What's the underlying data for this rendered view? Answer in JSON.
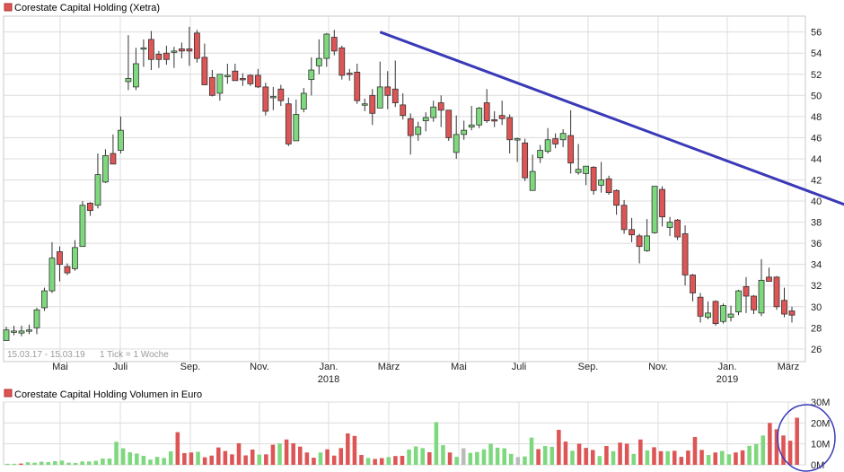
{
  "chart_data": [
    {
      "type": "candlestick",
      "title": "Corestate Capital Holding (Xetra)",
      "period_label": "15.03.17 - 15.03.19",
      "tick_label": "1 Tick = 1 Woche",
      "ylim": [
        24.8,
        57.5
      ],
      "y_ticks": [
        26,
        28,
        30,
        32,
        34,
        36,
        38,
        40,
        42,
        44,
        46,
        48,
        50,
        52,
        54,
        56
      ],
      "x_ticks": [
        {
          "label": "Mai",
          "year": ""
        },
        {
          "label": "Juli",
          "year": ""
        },
        {
          "label": "Sep.",
          "year": ""
        },
        {
          "label": "Nov.",
          "year": ""
        },
        {
          "label": "Jan.",
          "year": "2018"
        },
        {
          "label": "März",
          "year": ""
        },
        {
          "label": "Mai",
          "year": ""
        },
        {
          "label": "Juli",
          "year": ""
        },
        {
          "label": "Sep.",
          "year": ""
        },
        {
          "label": "Nov.",
          "year": ""
        },
        {
          "label": "Jan.",
          "year": "2019"
        },
        {
          "label": "März",
          "year": ""
        }
      ],
      "trendline": {
        "from": [
          49,
          56.0
        ],
        "to": [
          115,
          38.3
        ],
        "color": "#3a3ab8"
      },
      "candles": [
        [
          26.8,
          28.1,
          27.8,
          26.8
        ],
        [
          27.6,
          28.2,
          27.7,
          27.3
        ],
        [
          27.5,
          28.2,
          27.7,
          27.2
        ],
        [
          27.8,
          28.3,
          27.8,
          27.4
        ],
        [
          28.0,
          29.9,
          29.7,
          27.4
        ],
        [
          29.9,
          31.8,
          31.5,
          29.6
        ],
        [
          31.5,
          36.1,
          34.6,
          31.3
        ],
        [
          35.2,
          35.7,
          34.0,
          32.4
        ],
        [
          33.8,
          34.1,
          33.2,
          33.0
        ],
        [
          33.6,
          36.3,
          35.6,
          33.4
        ],
        [
          35.7,
          40.0,
          39.6,
          35.7
        ],
        [
          39.8,
          39.9,
          39.1,
          38.6
        ],
        [
          39.6,
          44.5,
          42.5,
          39.3
        ],
        [
          41.8,
          44.9,
          44.3,
          41.7
        ],
        [
          44.5,
          46.3,
          43.5,
          43.8
        ],
        [
          44.8,
          48.0,
          46.7,
          44.5
        ],
        [
          51.3,
          55.7,
          51.6,
          50.5
        ],
        [
          50.8,
          54.5,
          53.0,
          50.5
        ],
        [
          54.5,
          55.3,
          54.5,
          52.7
        ],
        [
          55.3,
          56.1,
          53.4,
          52.4
        ],
        [
          53.9,
          54.2,
          53.4,
          52.6
        ],
        [
          54.0,
          54.7,
          53.4,
          52.9
        ],
        [
          54.2,
          54.6,
          54.2,
          52.6
        ],
        [
          54.4,
          55.0,
          54.2,
          53.5
        ],
        [
          54.4,
          56.5,
          54.2,
          52.8
        ],
        [
          55.9,
          56.2,
          53.5,
          53.1
        ],
        [
          53.6,
          54.9,
          51.0,
          51.3
        ],
        [
          51.7,
          52.4,
          50.0,
          49.9
        ],
        [
          50.2,
          52.0,
          52.0,
          49.5
        ],
        [
          51.9,
          53.0,
          51.9,
          51.1
        ],
        [
          52.3,
          53.0,
          51.4,
          51.4
        ],
        [
          51.6,
          52.1,
          51.5,
          50.9
        ],
        [
          51.9,
          52.0,
          51.1,
          50.9
        ],
        [
          51.9,
          52.5,
          50.8,
          50.7
        ],
        [
          50.8,
          51.2,
          48.5,
          48.1
        ],
        [
          49.8,
          50.8,
          49.9,
          48.6
        ],
        [
          50.6,
          51.0,
          49.5,
          49.0
        ],
        [
          49.2,
          49.8,
          45.4,
          45.2
        ],
        [
          45.7,
          49.6,
          48.2,
          45.8
        ],
        [
          48.7,
          50.7,
          50.2,
          48.4
        ],
        [
          51.5,
          53.6,
          52.4,
          50.0
        ],
        [
          52.8,
          55.3,
          53.5,
          52.0
        ],
        [
          53.5,
          55.9,
          55.8,
          52.7
        ],
        [
          55.5,
          56.2,
          54.2,
          53.8
        ],
        [
          54.5,
          54.7,
          51.9,
          51.5
        ],
        [
          52.1,
          52.5,
          52.0,
          51.4
        ],
        [
          52.2,
          53.0,
          49.5,
          49.2
        ],
        [
          49.2,
          49.7,
          49.2,
          48.5
        ],
        [
          50.0,
          50.6,
          48.3,
          47.2
        ],
        [
          48.8,
          53.2,
          50.8,
          49.5
        ],
        [
          50.8,
          52.3,
          50.0,
          48.7
        ],
        [
          50.6,
          53.3,
          49.3,
          48.9
        ],
        [
          49.1,
          50.2,
          48.1,
          47.7
        ],
        [
          47.8,
          48.3,
          46.2,
          44.4
        ],
        [
          46.3,
          47.5,
          47.0,
          45.7
        ],
        [
          47.6,
          48.4,
          47.9,
          46.6
        ],
        [
          47.9,
          49.5,
          48.9,
          47.5
        ],
        [
          49.3,
          50.0,
          48.6,
          47.0
        ],
        [
          48.6,
          48.6,
          46.0,
          45.7
        ],
        [
          44.6,
          48.1,
          46.3,
          44.0
        ],
        [
          46.3,
          47.6,
          46.7,
          45.8
        ],
        [
          47.0,
          49.0,
          47.2,
          46.7
        ],
        [
          47.2,
          48.9,
          48.8,
          46.9
        ],
        [
          49.3,
          50.6,
          47.6,
          47.4
        ],
        [
          47.7,
          48.5,
          47.6,
          47.0
        ],
        [
          48.1,
          49.5,
          47.8,
          47.2
        ],
        [
          47.9,
          48.2,
          45.8,
          44.5
        ],
        [
          45.9,
          46.0,
          45.9,
          43.7
        ],
        [
          45.5,
          45.9,
          42.2,
          41.9
        ],
        [
          41.0,
          44.4,
          42.8,
          41.3
        ],
        [
          44.1,
          45.3,
          44.8,
          43.6
        ],
        [
          44.7,
          46.9,
          45.8,
          44.5
        ],
        [
          45.9,
          46.4,
          45.4,
          45.0
        ],
        [
          45.8,
          46.8,
          46.4,
          45.1
        ],
        [
          46.2,
          48.6,
          43.6,
          42.6
        ],
        [
          42.7,
          45.4,
          43.0,
          42.5
        ],
        [
          42.6,
          43.2,
          43.3,
          41.5
        ],
        [
          43.2,
          43.3,
          41.0,
          40.6
        ],
        [
          41.5,
          43.7,
          42.0,
          40.8
        ],
        [
          42.1,
          42.4,
          40.8,
          40.6
        ],
        [
          41.0,
          41.1,
          39.6,
          38.7
        ],
        [
          39.6,
          40.1,
          37.3,
          36.9
        ],
        [
          37.3,
          38.4,
          36.8,
          36.1
        ],
        [
          36.7,
          36.9,
          35.7,
          34.1
        ],
        [
          35.3,
          38.3,
          36.7,
          35.2
        ],
        [
          37.0,
          41.4,
          41.4,
          36.9
        ],
        [
          41.1,
          41.4,
          38.5,
          37.6
        ],
        [
          37.5,
          38.5,
          38.0,
          36.7
        ],
        [
          38.2,
          38.3,
          36.6,
          36.3
        ],
        [
          36.9,
          37.7,
          33.0,
          32.0
        ],
        [
          33.0,
          33.1,
          31.3,
          30.5
        ],
        [
          30.9,
          31.3,
          29.1,
          28.5
        ],
        [
          29.0,
          30.5,
          29.4,
          28.8
        ],
        [
          30.5,
          30.6,
          28.4,
          28.2
        ],
        [
          28.6,
          30.3,
          30.1,
          28.4
        ],
        [
          29.0,
          30.1,
          29.3,
          28.6
        ],
        [
          29.5,
          31.6,
          31.5,
          29.2
        ],
        [
          31.9,
          32.8,
          31.0,
          29.4
        ],
        [
          31.0,
          31.1,
          29.7,
          29.3
        ],
        [
          29.4,
          34.5,
          32.5,
          29.1
        ],
        [
          32.8,
          33.7,
          32.4,
          32.4
        ],
        [
          32.8,
          32.9,
          30.0,
          29.7
        ],
        [
          30.6,
          31.8,
          29.3,
          29.0
        ],
        [
          29.6,
          30.0,
          29.2,
          28.5
        ]
      ]
    },
    {
      "type": "bar",
      "title": "Corestate Capital Holding Volumen in Euro",
      "ylim": [
        0,
        30
      ],
      "y_ticks": [
        {
          "value": 0,
          "label": "0M"
        },
        {
          "value": 10,
          "label": "10M"
        },
        {
          "value": 20,
          "label": "20M"
        },
        {
          "value": 30,
          "label": "30M"
        }
      ],
      "values": [
        0.5,
        0.5,
        0.6,
        1.2,
        1.0,
        1.5,
        1.3,
        1.7,
        2.0,
        1.0,
        0.9,
        1.6,
        1.6,
        1.9,
        3.0,
        3.0,
        11.0,
        7.9,
        6.0,
        5.4,
        4.3,
        2.5,
        3.8,
        3.3,
        6.4,
        15.6,
        5.6,
        5.9,
        6.2,
        3.6,
        4.4,
        8.3,
        6.6,
        5.0,
        10.3,
        4.5,
        7.3,
        4.9,
        5.0,
        9.6,
        10.2,
        12.1,
        10.3,
        8.7,
        5.9,
        3.4,
        5.9,
        7.4,
        4.4,
        8.0,
        15.0,
        13.8,
        4.7,
        3.3,
        2.8,
        3.2,
        3.7,
        4.2,
        4.3,
        7.3,
        8.8,
        8.0,
        6.0,
        20.4,
        9.4,
        5.9,
        3.8,
        7.9,
        5.7,
        6.1,
        7.4,
        10.1,
        8.2,
        7.9,
        5.2,
        3.7,
        4.0,
        13.0,
        7.5,
        9.0,
        8.6,
        16.7,
        11.1,
        6.7,
        10.1,
        8.1,
        7.1,
        4.2,
        9.0,
        6.5,
        10.6,
        10.1,
        5.2,
        12.1,
        6.9,
        8.4,
        6.5,
        6.5,
        6.7,
        3.8,
        6.8,
        13.3,
        7.1,
        4.7,
        5.9,
        6.6,
        5.0,
        5.9,
        6.9,
        9.1,
        9.9,
        14.0,
        20.0,
        17.0,
        14.0,
        11.5,
        22.5
      ],
      "colors": [
        "g",
        "g",
        "r",
        "g",
        "g",
        "g",
        "g",
        "g",
        "g",
        "g",
        "g",
        "g",
        "g",
        "g",
        "g",
        "g",
        "g",
        "g",
        "g",
        "g",
        "g",
        "g",
        "g",
        "g",
        "g",
        "r",
        "r",
        "r",
        "g",
        "r",
        "r",
        "r",
        "r",
        "r",
        "r",
        "r",
        "r",
        "g",
        "r",
        "r",
        "g",
        "r",
        "r",
        "r",
        "r",
        "r",
        "g",
        "r",
        "r",
        "r",
        "r",
        "r",
        "r",
        "g",
        "r",
        "r",
        "g",
        "r",
        "r",
        "g",
        "g",
        "g",
        "r",
        "g",
        "g",
        "r",
        "g",
        "y",
        "g",
        "g",
        "g",
        "g",
        "g",
        "g",
        "g",
        "y",
        "g",
        "g",
        "r",
        "g",
        "g",
        "r",
        "r",
        "g",
        "r",
        "r",
        "r",
        "g",
        "r",
        "g",
        "r",
        "r",
        "g",
        "r",
        "g",
        "r",
        "r",
        "g",
        "r",
        "r",
        "r",
        "r",
        "r",
        "g",
        "r",
        "g",
        "g",
        "r",
        "r",
        "g",
        "g",
        "g",
        "r",
        "r",
        "r",
        "r",
        "r"
      ]
    }
  ],
  "colors": {
    "up": "#7ed87e",
    "down": "#dd5555",
    "neutral": "#bbbbbb",
    "grid": "#dcdcdc",
    "trend": "#3a3ab8",
    "circle": "#3a3ab8"
  }
}
